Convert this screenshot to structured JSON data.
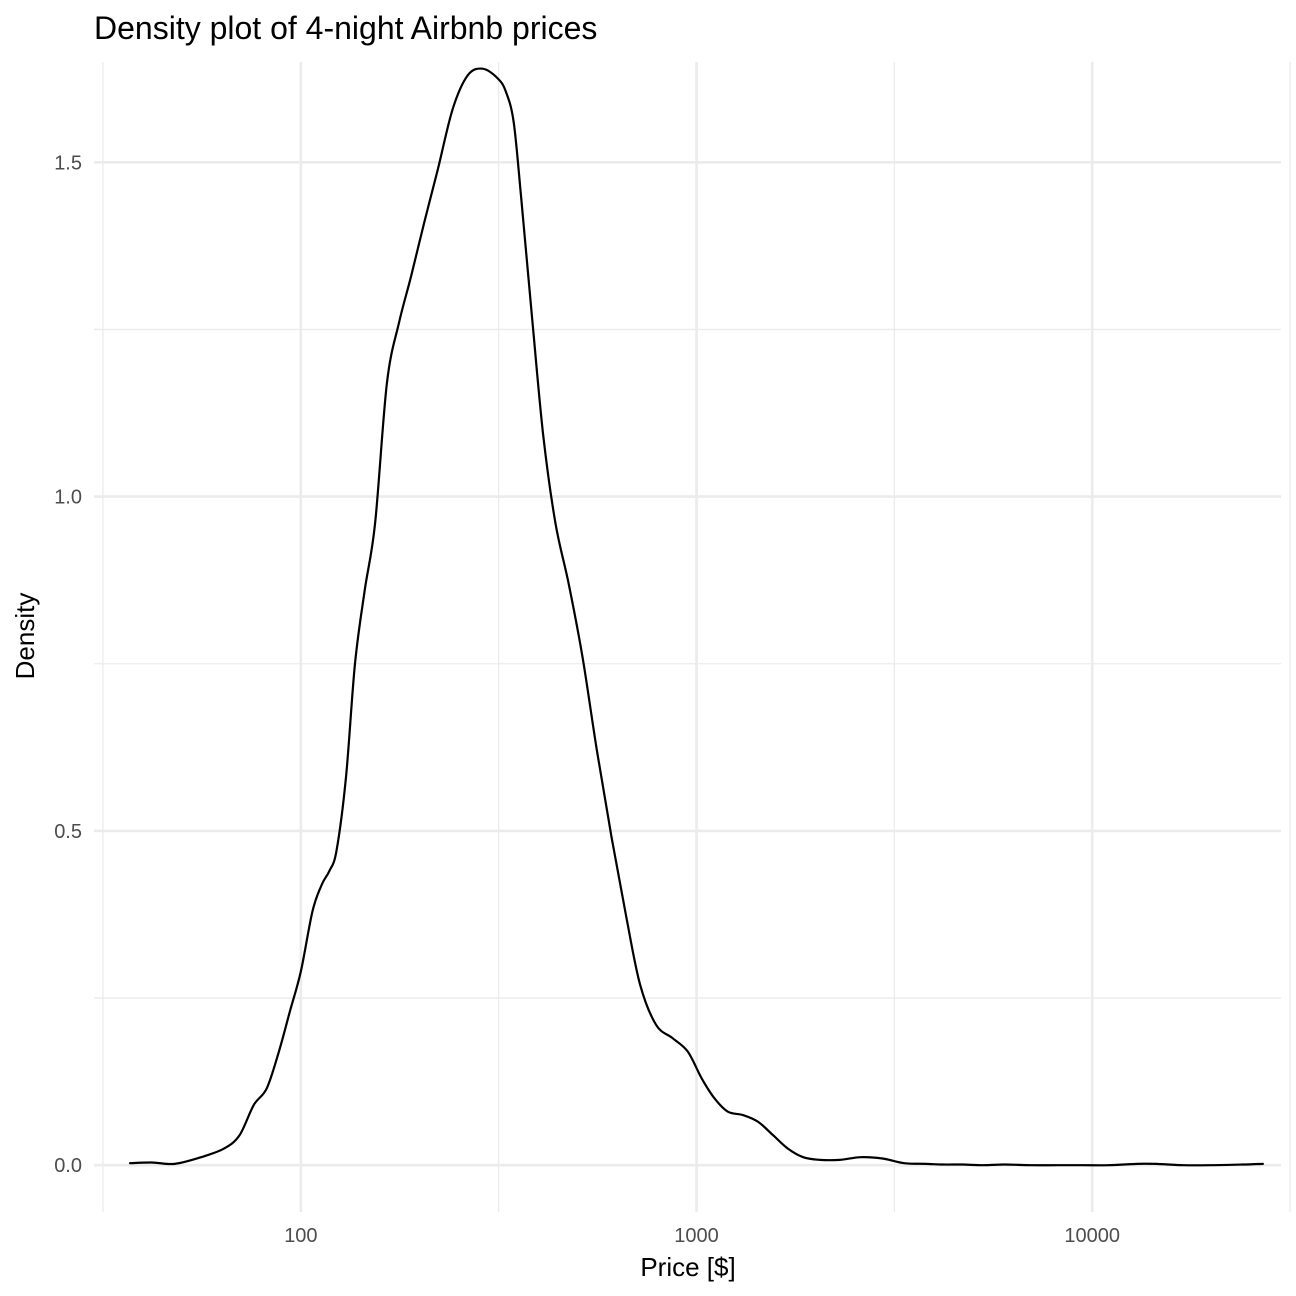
{
  "chart_data": {
    "type": "line",
    "title": "Density plot of 4-night Airbnb prices",
    "xlabel": "Price [$]",
    "ylabel": "Density",
    "x_scale": "log10",
    "xlim": [
      30,
      30000
    ],
    "ylim": [
      -0.07,
      1.65
    ],
    "grid": true,
    "legend": "none",
    "colors": {
      "line": "#000000",
      "grid": "#ebebeb",
      "tick_text": "#4d4d4d",
      "background": "#ffffff"
    },
    "x_ticks": [
      {
        "value": 100,
        "label": "100"
      },
      {
        "value": 1000,
        "label": "1000"
      },
      {
        "value": 10000,
        "label": "10000"
      }
    ],
    "x_minor_ticks": [
      31.6,
      316,
      3162,
      31623
    ],
    "y_ticks": [
      {
        "value": 0.0,
        "label": "0.0"
      },
      {
        "value": 0.5,
        "label": "0.5"
      },
      {
        "value": 1.0,
        "label": "1.0"
      },
      {
        "value": 1.5,
        "label": "1.5"
      }
    ],
    "y_minor_ticks": [
      0.25,
      0.75,
      1.25
    ],
    "series": [
      {
        "x": [
          37,
          42,
          48,
          56,
          64,
          70,
          76,
          82,
          88,
          94,
          100,
          107,
          113,
          118,
          123,
          130,
          137,
          145,
          154,
          165,
          177,
          190,
          205,
          222,
          242,
          264,
          288,
          315,
          330,
          345,
          360,
          385,
          410,
          440,
          475,
          515,
          560,
          610,
          665,
          720,
          790,
          870,
          950,
          1030,
          1110,
          1200,
          1310,
          1430,
          1560,
          1700,
          1860,
          2050,
          2300,
          2600,
          2950,
          3350,
          3800,
          4200,
          4700,
          5300,
          6000,
          7000,
          8200,
          9500,
          11000,
          13000,
          14500,
          17000,
          20000,
          24000,
          27000
        ],
        "y": [
          0.003,
          0.004,
          0.002,
          0.012,
          0.025,
          0.045,
          0.09,
          0.115,
          0.17,
          0.232,
          0.29,
          0.38,
          0.42,
          0.44,
          0.47,
          0.58,
          0.75,
          0.86,
          0.96,
          1.17,
          1.26,
          1.33,
          1.41,
          1.49,
          1.58,
          1.63,
          1.64,
          1.625,
          1.605,
          1.56,
          1.45,
          1.26,
          1.09,
          0.96,
          0.87,
          0.76,
          0.62,
          0.49,
          0.37,
          0.27,
          0.21,
          0.19,
          0.17,
          0.13,
          0.1,
          0.08,
          0.075,
          0.065,
          0.045,
          0.025,
          0.012,
          0.008,
          0.008,
          0.012,
          0.01,
          0.003,
          0.002,
          0.001,
          0.001,
          0.0,
          0.001,
          0.0,
          0.0,
          0.0,
          0.0,
          0.002,
          0.002,
          0.0,
          0.0,
          0.001,
          0.002
        ]
      }
    ]
  }
}
